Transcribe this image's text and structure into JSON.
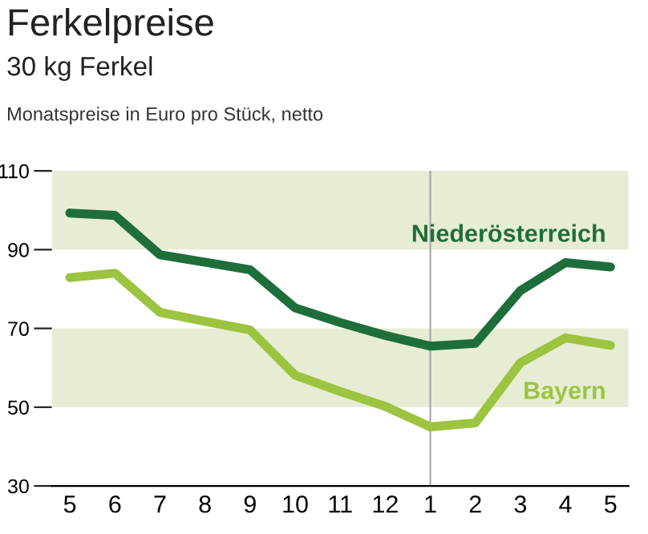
{
  "chart_data": {
    "type": "line",
    "title": "Ferkelpreise",
    "subtitle": "30 kg Ferkel",
    "ylabel": "Monatspreise in Euro pro Stück, netto",
    "categories": [
      "5",
      "6",
      "7",
      "8",
      "9",
      "10",
      "11",
      "12",
      "1",
      "2",
      "3",
      "4",
      "5"
    ],
    "series": [
      {
        "name": "Niederösterreich",
        "color": "#1e6e3c",
        "values": [
          99.3,
          98.7,
          88.7,
          86.8,
          84.9,
          75.2,
          71.5,
          68.2,
          65.5,
          66.2,
          79.6,
          86.7,
          85.6
        ]
      },
      {
        "name": "Bayern",
        "color": "#9cc440",
        "values": [
          82.9,
          84.0,
          74.1,
          71.8,
          69.6,
          58.1,
          54.0,
          50.2,
          45.0,
          46.0,
          61.3,
          67.6,
          65.7
        ]
      }
    ],
    "ylim": [
      30,
      110
    ],
    "yticks": [
      30,
      50,
      70,
      90,
      110
    ],
    "grid": false,
    "legend": false,
    "bands": [
      {
        "axis": "y",
        "from": 50,
        "to": 70,
        "color": "#e7edd4"
      },
      {
        "axis": "y",
        "from": 90,
        "to": 110,
        "color": "#e7edd4"
      }
    ],
    "ref_lines": [
      {
        "axis": "x",
        "value": "1",
        "color": "#aaaaaa"
      }
    ]
  }
}
